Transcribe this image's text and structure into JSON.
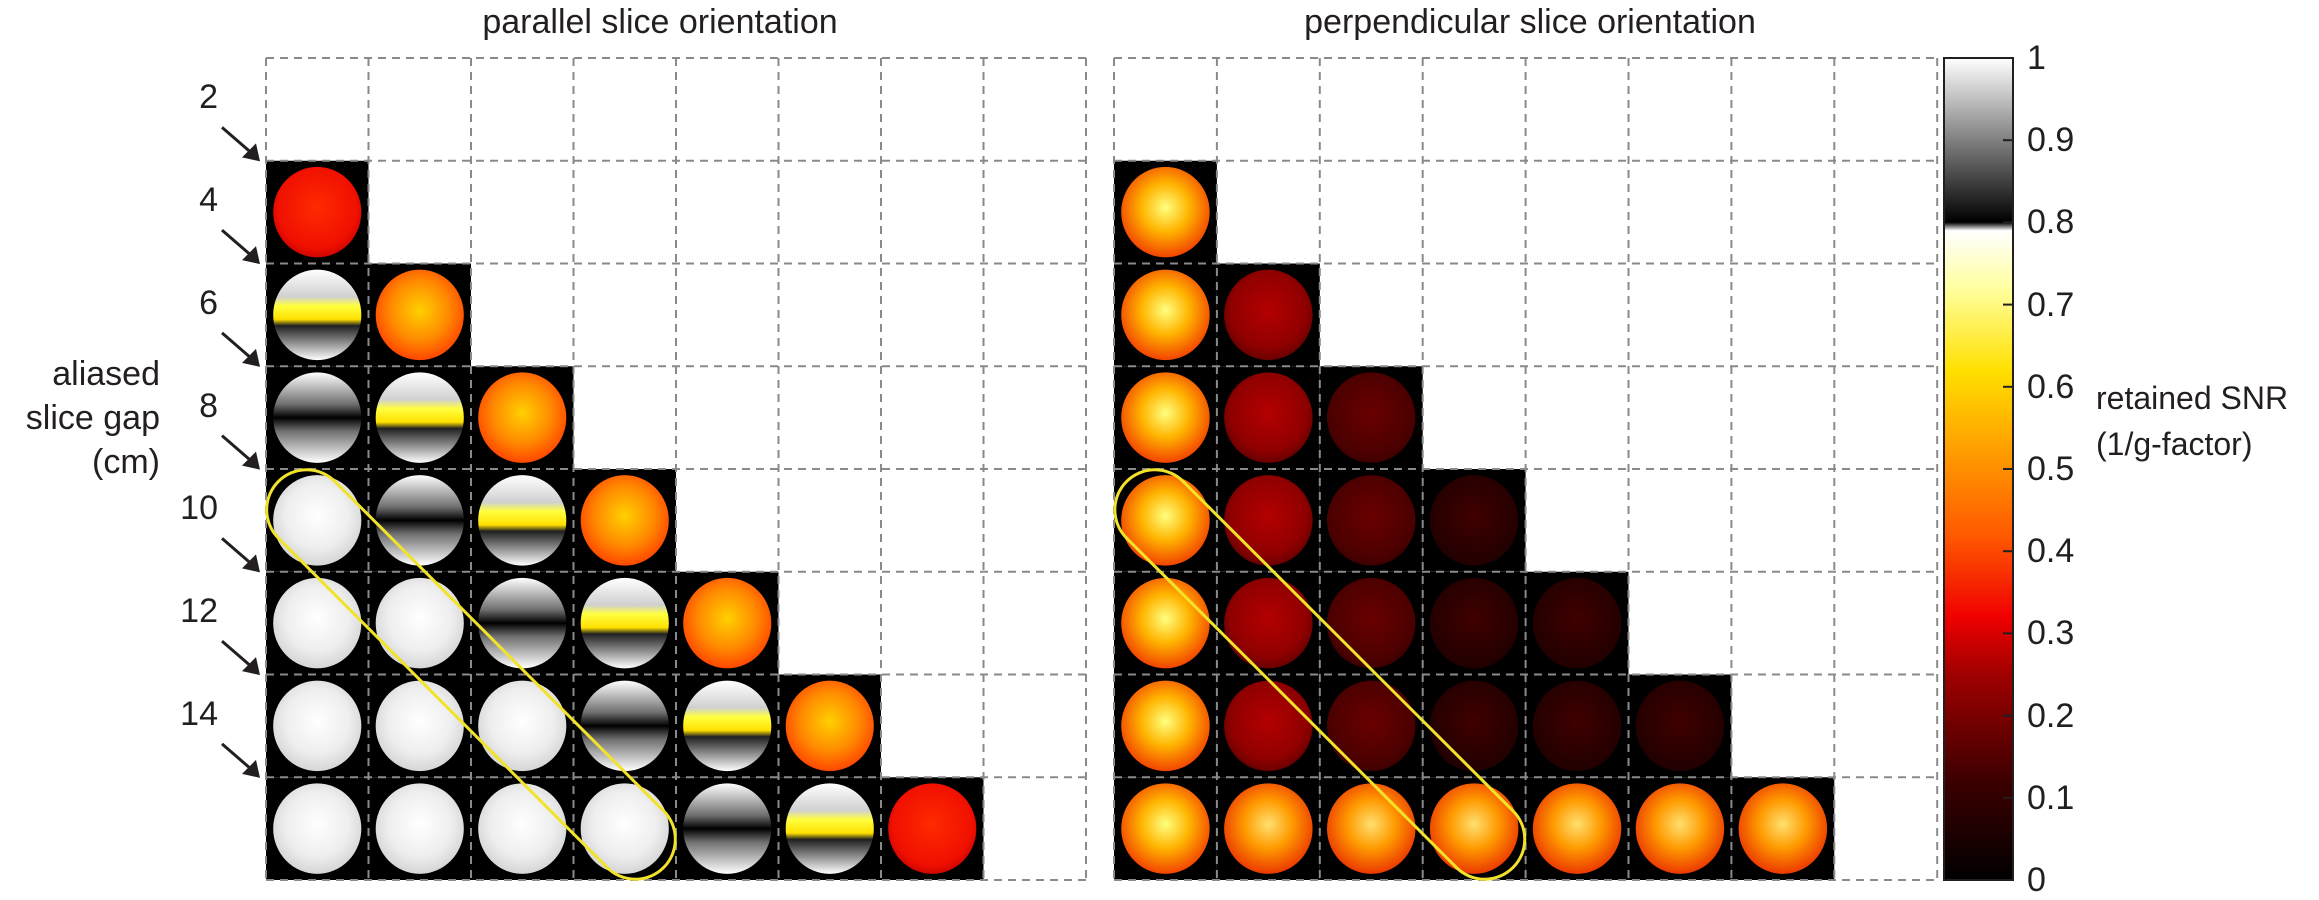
{
  "titles": {
    "parallel": "parallel slice orientation",
    "perpendicular": "perpendicular slice orientation"
  },
  "y_axis_label": [
    "aliased",
    "slice gap",
    "(cm)"
  ],
  "row_labels": [
    "2",
    "4",
    "6",
    "8",
    "10",
    "12",
    "14"
  ],
  "colorbar": {
    "label": [
      "retained SNR",
      "(1/g-factor)"
    ],
    "ticks": [
      "1",
      "0.9",
      "0.8",
      "0.7",
      "0.6",
      "0.5",
      "0.4",
      "0.3",
      "0.2",
      "0.1",
      "0"
    ],
    "stops": [
      {
        "value": 0.0,
        "color": "#000000"
      },
      {
        "value": 0.12,
        "color": "#3c0000"
      },
      {
        "value": 0.25,
        "color": "#a00000"
      },
      {
        "value": 0.32,
        "color": "#f00000"
      },
      {
        "value": 0.42,
        "color": "#ff5a00"
      },
      {
        "value": 0.52,
        "color": "#ff9c00"
      },
      {
        "value": 0.62,
        "color": "#ffe000"
      },
      {
        "value": 0.72,
        "color": "#ffffa0"
      },
      {
        "value": 0.79,
        "color": "#ffffff"
      },
      {
        "value": 0.8,
        "color": "#000000"
      },
      {
        "value": 0.9,
        "color": "#808080"
      },
      {
        "value": 1.0,
        "color": "#ffffff"
      }
    ]
  },
  "grid": {
    "columns": 8,
    "rows": 8,
    "highlight_color": "#f2e22a"
  },
  "colors": {
    "cell_bg": "#000000",
    "grid_line": "#8a8a8a"
  }
}
